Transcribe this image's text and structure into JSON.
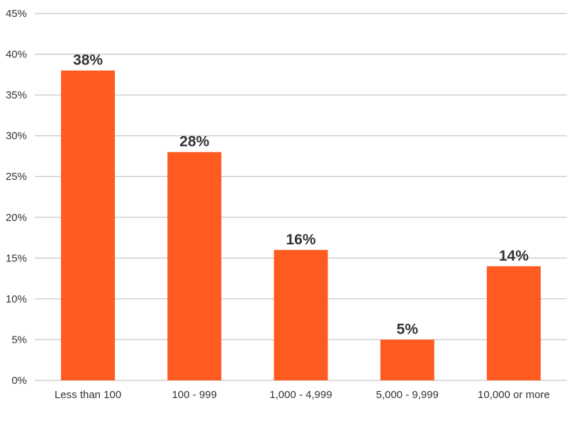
{
  "chart_data": {
    "type": "bar",
    "title": "",
    "xlabel": "",
    "ylabel": "",
    "categories": [
      "Less than 100",
      "100 - 999",
      "1,000 - 4,999",
      "5,000 - 9,999",
      "10,000 or more"
    ],
    "values": [
      38,
      28,
      16,
      5,
      14
    ],
    "data_labels": [
      "38%",
      "28%",
      "16%",
      "5%",
      "14%"
    ],
    "ylim": [
      0,
      45
    ],
    "yticks": [
      0,
      5,
      10,
      15,
      20,
      25,
      30,
      35,
      40,
      45
    ],
    "ytick_labels": [
      "0%",
      "5%",
      "10%",
      "15%",
      "20%",
      "25%",
      "30%",
      "35%",
      "40%",
      "45%"
    ],
    "grid": true,
    "legend": "none",
    "colors": {
      "bar": "#FF5A1F",
      "grid": "#d0d0d0",
      "text": "#333333"
    }
  }
}
